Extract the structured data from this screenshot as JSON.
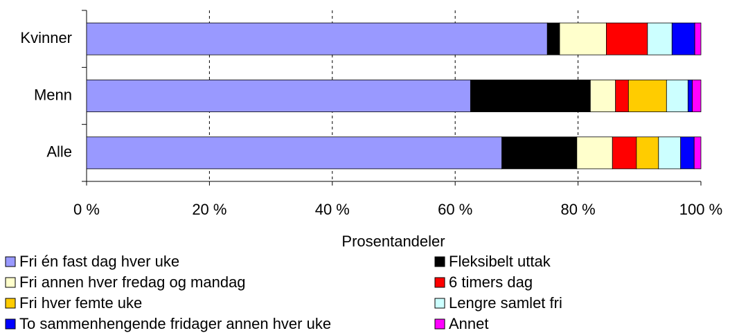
{
  "chart_data": {
    "type": "stacked-bar-horizontal",
    "categories": [
      "Kvinner",
      "Menn",
      "Alle"
    ],
    "series": [
      {
        "name": "Fri én fast dag hver uke",
        "color": "#9999ff",
        "values": [
          75.0,
          62.5,
          67.6
        ]
      },
      {
        "name": "Fleksibelt uttak",
        "color": "#000000",
        "values": [
          2.0,
          19.5,
          12.2
        ]
      },
      {
        "name": "Fri annen hver fredag og mandag",
        "color": "#ffffcc",
        "values": [
          7.6,
          4.1,
          5.8
        ]
      },
      {
        "name": "6 timers dag",
        "color": "#ff0000",
        "values": [
          6.7,
          2.1,
          3.9
        ]
      },
      {
        "name": "Fri hver femte uke",
        "color": "#ffcc00",
        "values": [
          0,
          6.2,
          3.6
        ]
      },
      {
        "name": "Lengre samlet fri",
        "color": "#ccffff",
        "values": [
          4.0,
          3.5,
          3.6
        ]
      },
      {
        "name": "To sammenhengende fridager annen hver uke",
        "color": "#0000ff",
        "values": [
          3.7,
          0.7,
          2.2
        ]
      },
      {
        "name": "Annet",
        "color": "#ff00ff",
        "values": [
          1.0,
          1.4,
          1.1
        ]
      }
    ],
    "x_label": "Prosentandeler",
    "xlim": [
      0,
      100
    ],
    "xticks": [
      {
        "value": 0,
        "label": "0 %"
      },
      {
        "value": 20,
        "label": "20 %"
      },
      {
        "value": 40,
        "label": "40 %"
      },
      {
        "value": 60,
        "label": "60 %"
      },
      {
        "value": 80,
        "label": "80 %"
      },
      {
        "value": 100,
        "label": "100 %"
      }
    ],
    "grid": true,
    "legend": "bottom"
  }
}
